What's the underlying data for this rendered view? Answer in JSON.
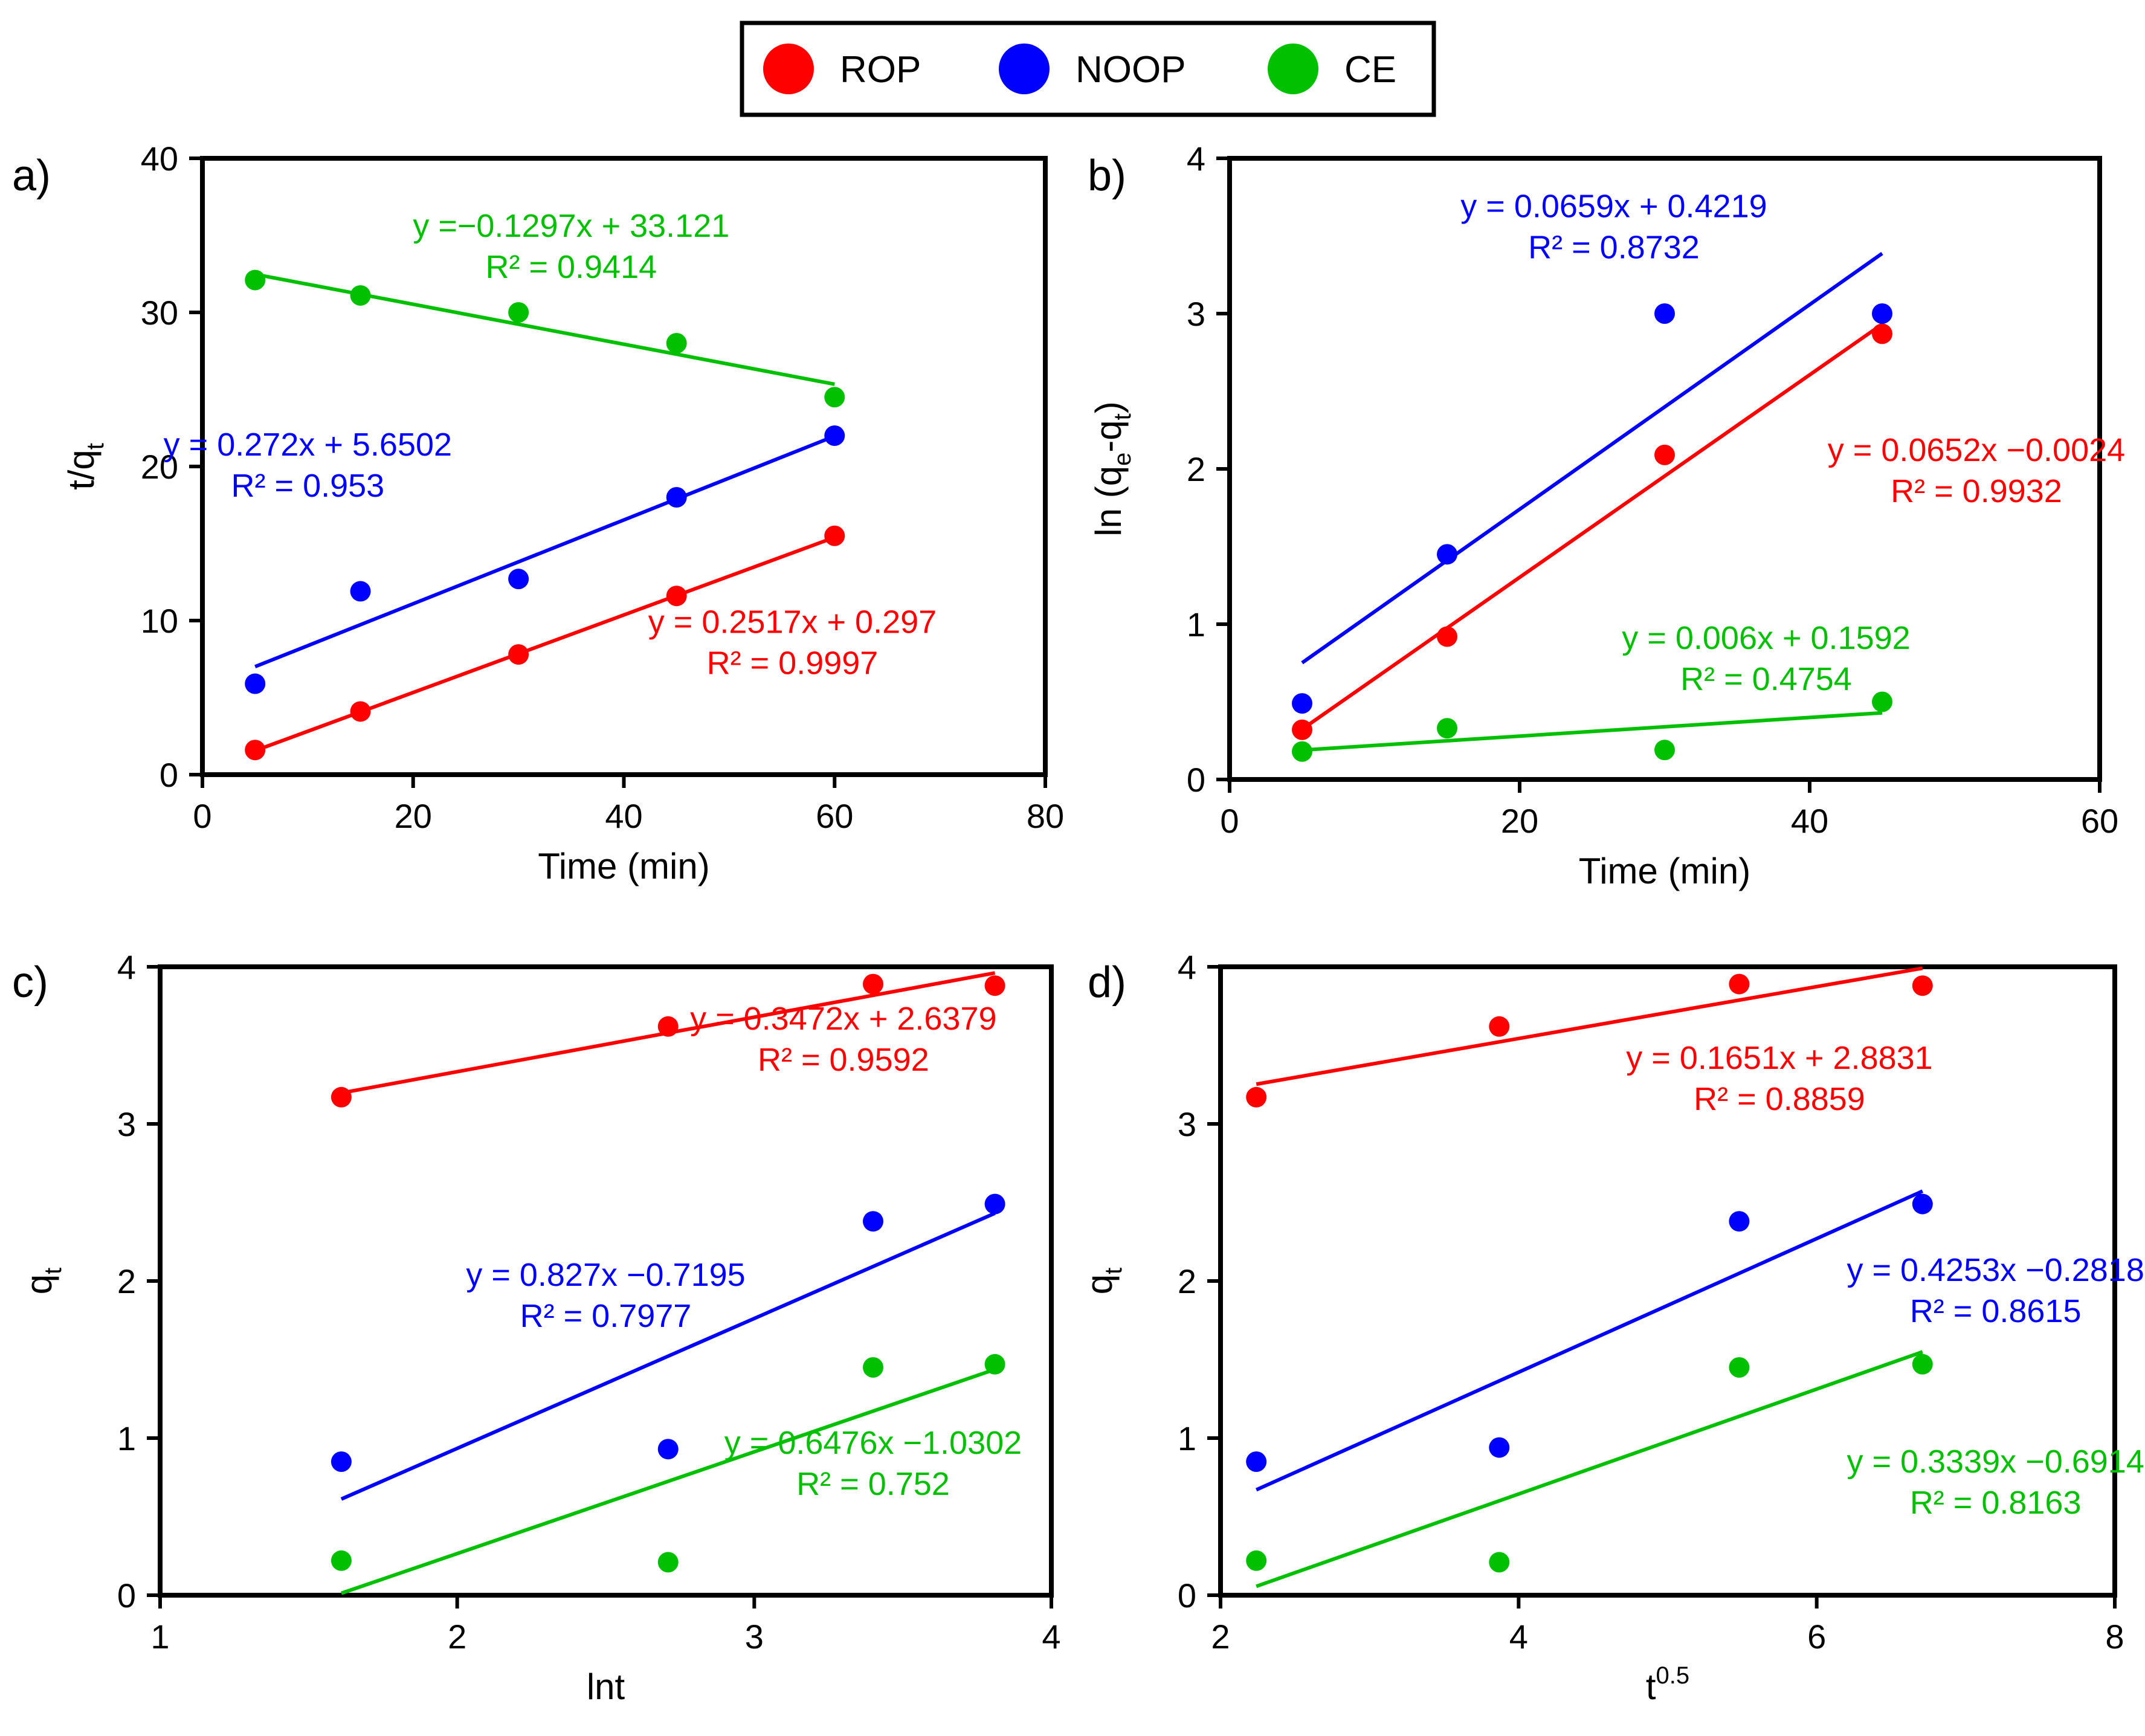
{
  "legend": {
    "position": "top-center",
    "items": [
      {
        "label": "ROP",
        "color": "#ff0000"
      },
      {
        "label": "NOOP",
        "color": "#0000ff"
      },
      {
        "label": "CE",
        "color": "#00c000"
      }
    ]
  },
  "chart_data": [
    {
      "panel": "a)",
      "type": "scatter",
      "xlabel": "Time (min)",
      "ylabel": {
        "base": "t/q",
        "sub": "t"
      },
      "xlim": [
        0,
        80
      ],
      "ylim": [
        0,
        40
      ],
      "xticks": [
        0,
        20,
        40,
        60,
        80
      ],
      "yticks": [
        0,
        10,
        20,
        30,
        40
      ],
      "grid": false,
      "series": [
        {
          "name": "ROP",
          "color": "#ff0000",
          "x": [
            5,
            15,
            30,
            45,
            60
          ],
          "y": [
            1.6,
            4.1,
            7.8,
            11.6,
            15.5
          ],
          "fit": {
            "slope": 0.2517,
            "intercept": 0.297,
            "x_range": [
              5,
              60
            ],
            "equation": "y = 0.2517x + 0.297",
            "r2": "R² = 0.9997",
            "label_at": [
              56,
              9.2
            ]
          }
        },
        {
          "name": "NOOP",
          "color": "#0000ff",
          "x": [
            5,
            15,
            30,
            45,
            60
          ],
          "y": [
            5.9,
            11.9,
            12.7,
            18.0,
            22.0
          ],
          "fit": {
            "slope": 0.272,
            "intercept": 5.6502,
            "x_range": [
              5,
              60
            ],
            "equation": "y = 0.272x + 5.6502",
            "r2": "R² = 0.953",
            "label_at": [
              10,
              20.7
            ]
          }
        },
        {
          "name": "CE",
          "color": "#00c000",
          "x": [
            5,
            15,
            30,
            45,
            60
          ],
          "y": [
            32.1,
            31.1,
            30.0,
            28.0,
            24.5
          ],
          "fit": {
            "slope": -0.1297,
            "intercept": 33.121,
            "x_range": [
              5,
              60
            ],
            "equation": "y =−0.1297x + 33.121",
            "r2": "R² = 0.9414",
            "label_at": [
              35,
              34.9
            ]
          }
        }
      ]
    },
    {
      "panel": "b)",
      "type": "scatter",
      "xlabel": "Time (min)",
      "ylabel": {
        "base": "ln (q",
        "sub1": "e",
        "mid": "-q",
        "sub2": "t",
        "end": ")"
      },
      "xlim": [
        0,
        60
      ],
      "ylim": [
        0,
        4
      ],
      "xticks": [
        0,
        20,
        40,
        60
      ],
      "yticks": [
        0,
        1,
        2,
        3,
        4
      ],
      "grid": false,
      "series": [
        {
          "name": "ROP",
          "color": "#ff0000",
          "x": [
            5,
            15,
            30,
            45
          ],
          "y": [
            0.32,
            0.92,
            2.09,
            2.87
          ],
          "fit": {
            "slope": 0.0652,
            "intercept": -0.0024,
            "x_range": [
              5,
              45
            ],
            "equation": "y = 0.0652x −0.0024",
            "r2": "R² = 0.9932",
            "label_at": [
              51.5,
              2.05
            ]
          }
        },
        {
          "name": "NOOP",
          "color": "#0000ff",
          "x": [
            5,
            15,
            30,
            45
          ],
          "y": [
            0.49,
            1.45,
            3.0,
            3.0
          ],
          "fit": {
            "slope": 0.0659,
            "intercept": 0.4219,
            "x_range": [
              5,
              45
            ],
            "equation": "y = 0.0659x + 0.4219",
            "r2": "R² = 0.8732",
            "label_at": [
              26.5,
              3.62
            ]
          }
        },
        {
          "name": "CE",
          "color": "#00c000",
          "x": [
            5,
            15,
            30,
            45
          ],
          "y": [
            0.18,
            0.33,
            0.19,
            0.5
          ],
          "fit": {
            "slope": 0.006,
            "intercept": 0.1592,
            "x_range": [
              5,
              45
            ],
            "equation": "y = 0.006x + 0.1592",
            "r2": "R² = 0.4754",
            "label_at": [
              37,
              0.84
            ]
          }
        }
      ]
    },
    {
      "panel": "c)",
      "type": "scatter",
      "xlabel": "lnt",
      "ylabel": {
        "base": "q",
        "sub": "t"
      },
      "xlim": [
        1,
        4
      ],
      "ylim": [
        0,
        4
      ],
      "xticks": [
        1,
        2,
        3,
        4
      ],
      "yticks": [
        0,
        1,
        2,
        3,
        4
      ],
      "grid": false,
      "series": [
        {
          "name": "ROP",
          "color": "#ff0000",
          "x": [
            1.61,
            2.71,
            3.4,
            3.81
          ],
          "y": [
            3.17,
            3.62,
            3.89,
            3.88
          ],
          "fit": {
            "slope": 0.3472,
            "intercept": 2.6379,
            "x_range": [
              1.61,
              3.81
            ],
            "equation": "y = 0.3472x + 2.6379",
            "r2": "R² = 0.9592",
            "label_at": [
              3.3,
              3.6
            ]
          }
        },
        {
          "name": "NOOP",
          "color": "#0000ff",
          "x": [
            1.61,
            2.71,
            3.4,
            3.81
          ],
          "y": [
            0.85,
            0.93,
            2.38,
            2.49
          ],
          "fit": {
            "slope": 0.827,
            "intercept": -0.7195,
            "x_range": [
              1.61,
              3.81
            ],
            "equation": "y = 0.827x −0.7195",
            "r2": "R² = 0.7977",
            "label_at": [
              2.5,
              1.97
            ]
          }
        },
        {
          "name": "CE",
          "color": "#00c000",
          "x": [
            1.61,
            2.71,
            3.4,
            3.81
          ],
          "y": [
            0.22,
            0.21,
            1.45,
            1.47
          ],
          "fit": {
            "slope": 0.6476,
            "intercept": -1.0302,
            "x_range": [
              1.61,
              3.81
            ],
            "equation": "y = 0.6476x −1.0302",
            "r2": "R² = 0.752",
            "label_at": [
              3.4,
              0.9
            ]
          }
        }
      ]
    },
    {
      "panel": "d)",
      "type": "scatter",
      "xlabel": {
        "base": "t",
        "sup": "0.5"
      },
      "ylabel": {
        "base": "q",
        "sub": "t"
      },
      "xlim": [
        2,
        8
      ],
      "ylim": [
        0,
        4
      ],
      "xticks": [
        2,
        4,
        6,
        8
      ],
      "yticks": [
        0,
        1,
        2,
        3,
        4
      ],
      "grid": false,
      "series": [
        {
          "name": "ROP",
          "color": "#ff0000",
          "x": [
            2.24,
            3.87,
            5.48,
            6.71
          ],
          "y": [
            3.17,
            3.62,
            3.89,
            3.88
          ],
          "fit": {
            "slope": 0.1651,
            "intercept": 2.8831,
            "x_range": [
              2.24,
              6.71
            ],
            "equation": "y = 0.1651x + 2.8831",
            "r2": "R² = 0.8859",
            "label_at": [
              5.75,
              3.35
            ]
          }
        },
        {
          "name": "NOOP",
          "color": "#0000ff",
          "x": [
            2.24,
            3.87,
            5.48,
            6.71
          ],
          "y": [
            0.85,
            0.94,
            2.38,
            2.49
          ],
          "fit": {
            "slope": 0.4253,
            "intercept": -0.2818,
            "x_range": [
              2.24,
              6.71
            ],
            "equation": "y = 0.4253x −0.2818",
            "r2": "R² = 0.8615",
            "label_at": [
              7.2,
              2.0
            ]
          }
        },
        {
          "name": "CE",
          "color": "#00c000",
          "x": [
            2.24,
            3.87,
            5.48,
            6.71
          ],
          "y": [
            0.22,
            0.21,
            1.45,
            1.47
          ],
          "fit": {
            "slope": 0.3339,
            "intercept": -0.6914,
            "x_range": [
              2.24,
              6.71
            ],
            "equation": "y = 0.3339x −0.6914",
            "r2": "R² = 0.8163",
            "label_at": [
              7.2,
              0.78
            ]
          }
        }
      ]
    }
  ]
}
